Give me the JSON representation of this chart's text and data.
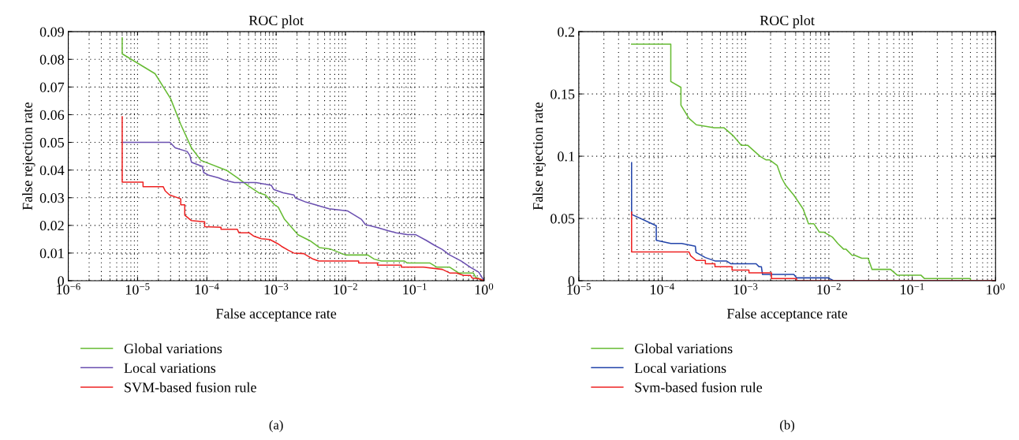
{
  "chart_data": [
    {
      "type": "line",
      "title": "ROC plot",
      "xlabel": "False acceptance rate",
      "ylabel": "False rejection rate",
      "log": "x",
      "grid": true,
      "legend": "bottom",
      "marker": "none",
      "line_style": "solid",
      "xlim": [
        1e-06,
        1
      ],
      "ylim": [
        0,
        0.09
      ],
      "xticks": [
        {
          "value": 1e-06,
          "label": "10$^{−6}$"
        },
        {
          "value": 1e-05,
          "label": "10$^{−5}$"
        },
        {
          "value": 0.0001,
          "label": "10$^{−4}$"
        },
        {
          "value": 0.001,
          "label": "10$^{−3}$"
        },
        {
          "value": 0.01,
          "label": "10$^{−2}$"
        },
        {
          "value": 0.1,
          "label": "10$^{−1}$"
        },
        {
          "value": 1,
          "label": "10$^{0}$"
        }
      ],
      "yticks": [
        0,
        0.01,
        0.02,
        0.03,
        0.04,
        0.05,
        0.06,
        0.07,
        0.08,
        0.09
      ],
      "annotations": [
        "(a)"
      ],
      "series": [
        {
          "name": "Global variations",
          "color": "#66bb33",
          "x": [
            6e-06,
            6e-06,
            1.79e-05,
            3e-05,
            4.2e-05,
            6e-05,
            8.2e-05,
            0.000192,
            0.000275,
            0.000395,
            0.00056,
            0.0007,
            0.00096,
            0.00107,
            0.00132,
            0.00207,
            0.0031,
            0.0042,
            0.006,
            0.01,
            0.021,
            0.026,
            0.033,
            0.071,
            0.078,
            0.166,
            0.209,
            0.32,
            0.43,
            0.7,
            0.76,
            1.0
          ],
          "values": [
            0.0878,
            0.082,
            0.0748,
            0.0658,
            0.0565,
            0.048,
            0.0435,
            0.0399,
            0.0372,
            0.0343,
            0.0318,
            0.031,
            0.0273,
            0.0266,
            0.0222,
            0.0166,
            0.0144,
            0.012,
            0.0115,
            0.0093,
            0.0093,
            0.0078,
            0.0071,
            0.0071,
            0.0064,
            0.0064,
            0.0049,
            0.0049,
            0.0028,
            0.0028,
            0.0012,
            0
          ]
        },
        {
          "name": "Local variations",
          "color": "#6a4fb0",
          "x": [
            6e-06,
            2.93e-05,
            3.5e-05,
            5.2e-05,
            5.7e-05,
            6e-05,
            8.6e-05,
            9e-05,
            0.000107,
            0.000147,
            0.000176,
            0.00025,
            0.00051,
            0.00085,
            0.00092,
            0.00126,
            0.0018,
            0.0019,
            0.0027,
            0.0037,
            0.0058,
            0.0108,
            0.014,
            0.017,
            0.0194,
            0.03,
            0.041,
            0.054,
            0.078,
            0.102,
            0.146,
            0.19,
            0.25,
            0.32,
            0.47,
            0.64,
            0.84,
            1.0
          ],
          "values": [
            0.05,
            0.05,
            0.048,
            0.0467,
            0.0452,
            0.0428,
            0.0413,
            0.0391,
            0.0381,
            0.0372,
            0.0364,
            0.0355,
            0.0355,
            0.0345,
            0.033,
            0.0318,
            0.031,
            0.0299,
            0.0284,
            0.0274,
            0.026,
            0.0252,
            0.0235,
            0.0222,
            0.0203,
            0.0191,
            0.0181,
            0.0173,
            0.0167,
            0.0167,
            0.0146,
            0.0129,
            0.0113,
            0.0093,
            0.0071,
            0.0048,
            0.0031,
            0
          ]
        },
        {
          "name": "SVM-based fusion rule",
          "color": "#ee2222",
          "x": [
            6e-06,
            6e-06,
            1.2e-05,
            1.2e-05,
            2.34e-05,
            2.5e-05,
            2.9e-05,
            4.2e-05,
            4.2e-05,
            4.8e-05,
            4.8e-05,
            6e-05,
            9.3e-05,
            9.3e-05,
            0.00016,
            0.00016,
            0.000275,
            0.00029,
            0.00041,
            0.00047,
            0.00061,
            0.00081,
            0.00105,
            0.0012,
            0.0015,
            0.0018,
            0.0025,
            0.0033,
            0.0041,
            0.0155,
            0.0155,
            0.029,
            0.029,
            0.064,
            0.064,
            0.133,
            0.25,
            0.32,
            0.4,
            0.51,
            0.64,
            0.67,
            0.84,
            1.0
          ],
          "values": [
            0.0593,
            0.0356,
            0.0356,
            0.034,
            0.034,
            0.0325,
            0.031,
            0.0296,
            0.0274,
            0.0274,
            0.0237,
            0.0217,
            0.0213,
            0.0195,
            0.0193,
            0.0186,
            0.0186,
            0.0173,
            0.0173,
            0.0162,
            0.0152,
            0.0149,
            0.0134,
            0.0124,
            0.011,
            0.01,
            0.0098,
            0.008,
            0.0071,
            0.0071,
            0.0064,
            0.0064,
            0.0056,
            0.0056,
            0.0049,
            0.0049,
            0.0041,
            0.0028,
            0.0028,
            0.0019,
            0.0019,
            0.001,
            0.0007,
            0
          ]
        }
      ]
    },
    {
      "type": "line",
      "title": "ROC plot",
      "xlabel": "False acceptance rate",
      "ylabel": "False rejection rate",
      "log": "x",
      "grid": true,
      "legend": "bottom",
      "marker": "none",
      "line_style": "solid",
      "xlim": [
        1e-05,
        1
      ],
      "ylim": [
        0,
        0.2
      ],
      "xticks": [
        {
          "value": 1e-05,
          "label": "10$^{−5}$"
        },
        {
          "value": 0.0001,
          "label": "10$^{−4}$"
        },
        {
          "value": 0.001,
          "label": "10$^{−3}$"
        },
        {
          "value": 0.01,
          "label": "10$^{−2}$"
        },
        {
          "value": 0.1,
          "label": "10$^{−1}$"
        },
        {
          "value": 1,
          "label": "10$^{0}$"
        }
      ],
      "yticks": [
        0,
        0.05,
        0.1,
        0.15,
        0.2
      ],
      "annotations": [
        "(b)"
      ],
      "series": [
        {
          "name": "Global variations",
          "color": "#66bb33",
          "x": [
            4.3e-05,
            0.000127,
            0.000127,
            0.000168,
            0.000168,
            0.00021,
            0.000257,
            0.00042,
            0.00055,
            0.00072,
            0.00089,
            0.00106,
            0.0015,
            0.00177,
            0.00195,
            0.0024,
            0.0027,
            0.003,
            0.0038,
            0.0049,
            0.0057,
            0.0066,
            0.0077,
            0.0087,
            0.011,
            0.0128,
            0.015,
            0.016,
            0.019,
            0.0205,
            0.0248,
            0.0296,
            0.033,
            0.055,
            0.066,
            0.127,
            0.14,
            0.5,
            0.5,
            1.0
          ],
          "values": [
            0.19,
            0.19,
            0.16,
            0.1553,
            0.141,
            0.1304,
            0.1252,
            0.1229,
            0.1229,
            0.1161,
            0.1088,
            0.1088,
            0.0998,
            0.097,
            0.097,
            0.0925,
            0.0828,
            0.0771,
            0.0687,
            0.0578,
            0.0458,
            0.0458,
            0.039,
            0.039,
            0.0351,
            0.0299,
            0.0254,
            0.0254,
            0.0204,
            0.0204,
            0.0181,
            0.0181,
            0.0091,
            0.0091,
            0.0045,
            0.0045,
            0.0018,
            0.0018,
            0,
            0
          ]
        },
        {
          "name": "Local variations",
          "color": "#2244aa",
          "x": [
            4.3e-05,
            4.3e-05,
            8.5e-05,
            8.5e-05,
            0.000127,
            0.000171,
            0.00025,
            0.000255,
            0.00033,
            0.00043,
            0.00059,
            0.00067,
            0.00134,
            0.00145,
            0.00155,
            0.0016,
            0.0038,
            0.0041,
            0.0098,
            0.0114,
            1.0
          ],
          "values": [
            0.0948,
            0.0533,
            0.0442,
            0.0324,
            0.0299,
            0.0299,
            0.0277,
            0.0227,
            0.0186,
            0.0159,
            0.0159,
            0.0136,
            0.0136,
            0.0113,
            0.0113,
            0.005,
            0.005,
            0.0023,
            0.0023,
            0,
            0
          ]
        },
        {
          "name": "Svm-based fusion rule",
          "color": "#ee2222",
          "x": [
            4.3e-05,
            4.3e-05,
            0.00021,
            0.00022,
            0.000257,
            0.00033,
            0.00033,
            0.00043,
            0.00043,
            0.00069,
            0.00069,
            0.0011,
            0.0011,
            0.00205,
            0.00205,
            0.0041,
            0.0041,
            1.0
          ],
          "values": [
            0.0551,
            0.0231,
            0.0231,
            0.02,
            0.0163,
            0.0163,
            0.0136,
            0.0136,
            0.0113,
            0.0113,
            0.0086,
            0.0086,
            0.0063,
            0.0063,
            0.0018,
            0.0018,
            0,
            0
          ]
        }
      ]
    }
  ]
}
